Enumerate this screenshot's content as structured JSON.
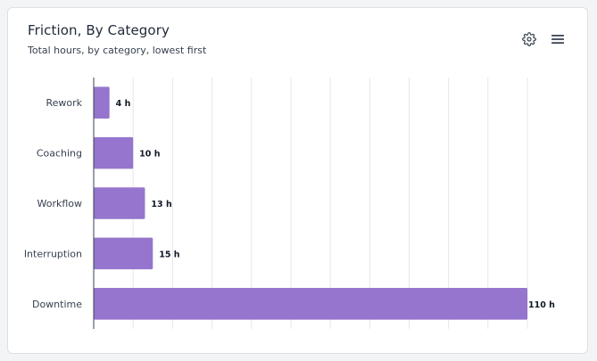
{
  "header": {
    "title": "Friction, By Category",
    "subtitle": "Total hours, by category, lowest first"
  },
  "toolbar": {
    "settings_icon": "gear-icon",
    "menu_icon": "hamburger-menu-icon"
  },
  "colors": {
    "bar": "#9575cd",
    "grid": "#e5e7eb",
    "axis": "#374151",
    "label": "#374151",
    "value_label": "#111827"
  },
  "chart_data": {
    "type": "bar",
    "orientation": "horizontal",
    "title": "Friction, By Category",
    "subtitle": "Total hours, by category, lowest first",
    "categories": [
      "Rework",
      "Coaching",
      "Workflow",
      "Interruption",
      "Downtime"
    ],
    "values": [
      4,
      10,
      13,
      15,
      110
    ],
    "value_labels": [
      "4 h",
      "10 h",
      "13 h",
      "15 h",
      "110 h"
    ],
    "unit": "h",
    "xlim": [
      0,
      110
    ],
    "grid": true
  }
}
